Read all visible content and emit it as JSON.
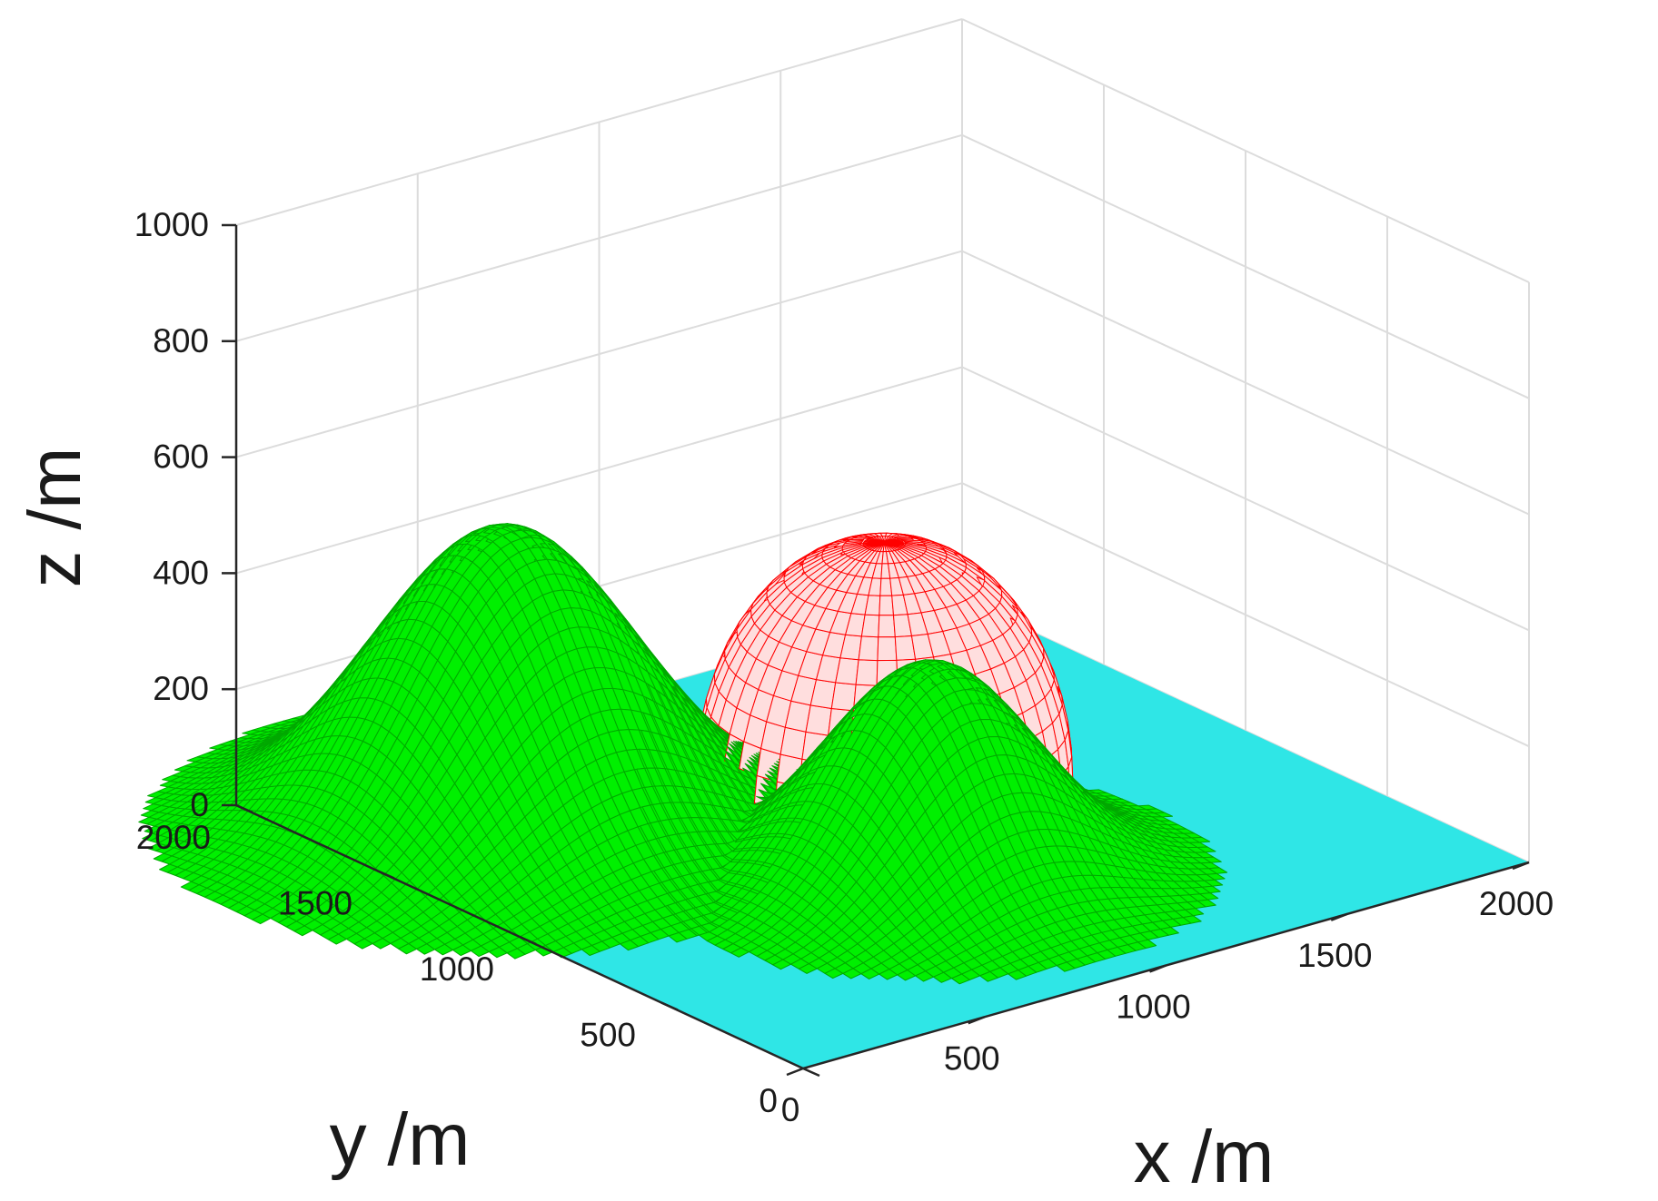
{
  "chart_data": {
    "type": "surface3d",
    "title": "",
    "xlabel": "x  /m",
    "ylabel": "y  /m",
    "zlabel": "z  /m",
    "xlim": [
      0,
      2000
    ],
    "ylim": [
      0,
      2000
    ],
    "zlim": [
      0,
      1000
    ],
    "xticks": [
      "0",
      "500",
      "1000",
      "1500",
      "2000"
    ],
    "yticks": [
      "0",
      "500",
      "1000",
      "1500",
      "2000"
    ],
    "zticks": [
      "0",
      "200",
      "400",
      "600",
      "800",
      "1000"
    ],
    "grid": true,
    "colors": {
      "ground": "#2fe6e6",
      "peaks": "#00f000",
      "peak_mesh": "#00a800",
      "obstacle": "#ff0000",
      "obstacle_face": "#ffdede",
      "grid": "#dcdcdc",
      "axis": "#262626"
    },
    "surfaces": [
      {
        "kind": "ground",
        "z": 0
      },
      {
        "kind": "peak",
        "center": [
          350,
          1500
        ],
        "height": 530,
        "spread": 300
      },
      {
        "kind": "peak",
        "center": [
          900,
          700
        ],
        "height": 380,
        "spread": 240
      },
      {
        "kind": "hemisphere",
        "center": [
          1200,
          1250
        ],
        "radius": 410
      }
    ]
  }
}
